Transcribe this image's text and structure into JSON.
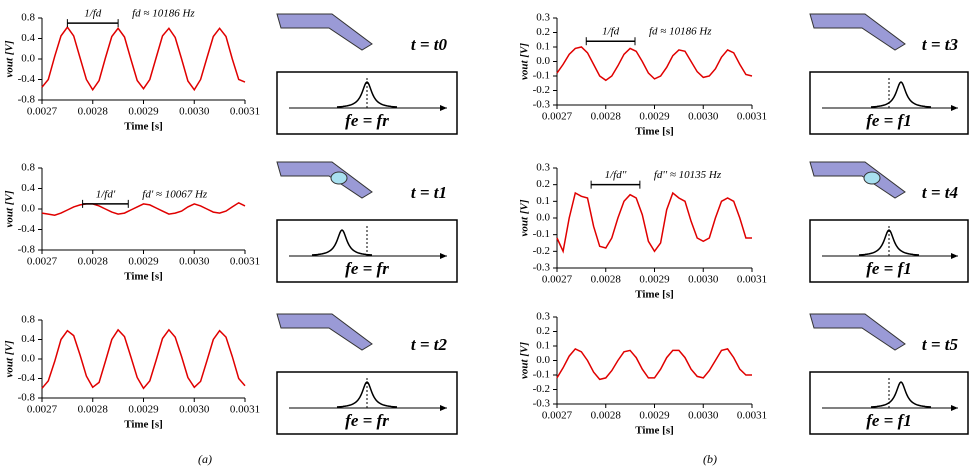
{
  "chart_data": [
    {
      "type": "line",
      "x_label": "Time [s]",
      "y_label": "vout [V]",
      "color": "#e00000",
      "period_label": "1/fd",
      "frequency_label": "fd ≈ 10186 Hz",
      "x": [
        0.0027,
        0.0027125,
        0.002725,
        0.0027375,
        0.00275,
        0.0027625,
        0.002775,
        0.0027875,
        0.0028,
        0.0028125,
        0.002825,
        0.0028375,
        0.00285,
        0.0028625,
        0.002875,
        0.0028875,
        0.0029,
        0.0029125,
        0.002925,
        0.0029375,
        0.00295,
        0.0029625,
        0.002975,
        0.0029875,
        0.003,
        0.0030125,
        0.003025,
        0.0030375,
        0.00305,
        0.0030625,
        0.003075,
        0.0030875,
        0.0031
      ],
      "values": [
        -0.55,
        -0.4,
        0.05,
        0.45,
        0.62,
        0.45,
        0.02,
        -0.4,
        -0.6,
        -0.42,
        0.02,
        0.44,
        0.6,
        0.43,
        0.0,
        -0.42,
        -0.58,
        -0.4,
        0.03,
        0.45,
        0.6,
        0.42,
        0.0,
        -0.43,
        -0.6,
        -0.4,
        0.02,
        0.44,
        0.6,
        0.44,
        0.0,
        -0.4,
        -0.45
      ],
      "xlim": [
        0.0027,
        0.0031
      ],
      "xticks": [
        0.0027,
        0.0028,
        0.0029,
        {
          "value": 0.003,
          "label": "0.0030"
        },
        0.0031
      ],
      "ylim": [
        -0.8,
        0.8
      ],
      "yticks": [
        -0.8,
        -0.4,
        {
          "value": 0,
          "label": "0.0"
        },
        0.4,
        0.8
      ]
    },
    {
      "type": "line",
      "x_label": "Time [s]",
      "y_label": "vout [V]",
      "color": "#e00000",
      "period_label": "1/fd'",
      "frequency_label": "fd' ≈ 10067 Hz",
      "x": [
        0.0027,
        0.0027125,
        0.002725,
        0.0027375,
        0.00275,
        0.0027625,
        0.002775,
        0.0027875,
        0.0028,
        0.0028125,
        0.002825,
        0.0028375,
        0.00285,
        0.0028625,
        0.002875,
        0.0028875,
        0.0029,
        0.0029125,
        0.002925,
        0.0029375,
        0.00295,
        0.0029625,
        0.002975,
        0.0029875,
        0.003,
        0.0030125,
        0.003025,
        0.0030375,
        0.00305,
        0.0030625,
        0.003075,
        0.0030875,
        0.0031
      ],
      "values": [
        -0.08,
        -0.1,
        -0.12,
        -0.08,
        -0.02,
        0.04,
        0.08,
        0.1,
        0.1,
        0.06,
        0.0,
        -0.06,
        -0.1,
        -0.08,
        -0.02,
        0.04,
        0.1,
        0.08,
        0.02,
        -0.04,
        -0.1,
        -0.08,
        -0.04,
        0.04,
        0.1,
        0.06,
        0.0,
        -0.06,
        -0.08,
        -0.04,
        0.04,
        0.12,
        0.06
      ],
      "xlim": [
        0.0027,
        0.0031
      ],
      "xticks": [
        0.0027,
        0.0028,
        0.0029,
        {
          "value": 0.003,
          "label": "0.0030"
        },
        0.0031
      ],
      "ylim": [
        -0.8,
        0.8
      ],
      "yticks": [
        -0.8,
        -0.4,
        {
          "value": 0,
          "label": "0.0"
        },
        0.4,
        0.8
      ]
    },
    {
      "type": "line",
      "x_label": "Time [s]",
      "y_label": "vout [V]",
      "color": "#e00000",
      "x": [
        0.0027,
        0.0027125,
        0.002725,
        0.0027375,
        0.00275,
        0.0027625,
        0.002775,
        0.0027875,
        0.0028,
        0.0028125,
        0.002825,
        0.0028375,
        0.00285,
        0.0028625,
        0.002875,
        0.0028875,
        0.0029,
        0.0029125,
        0.002925,
        0.0029375,
        0.00295,
        0.0029625,
        0.002975,
        0.0029875,
        0.003,
        0.0030125,
        0.003025,
        0.0030375,
        0.00305,
        0.0030625,
        0.003075,
        0.0030875,
        0.0031
      ],
      "values": [
        -0.6,
        -0.45,
        -0.05,
        0.4,
        0.58,
        0.48,
        0.08,
        -0.35,
        -0.58,
        -0.48,
        -0.05,
        0.4,
        0.6,
        0.46,
        0.05,
        -0.38,
        -0.6,
        -0.45,
        -0.02,
        0.42,
        0.6,
        0.45,
        0.05,
        -0.38,
        -0.58,
        -0.46,
        -0.04,
        0.4,
        0.58,
        0.45,
        0.05,
        -0.4,
        -0.55
      ],
      "xlim": [
        0.0027,
        0.0031
      ],
      "xticks": [
        0.0027,
        0.0028,
        0.0029,
        {
          "value": 0.003,
          "label": "0.0030"
        },
        0.0031
      ],
      "ylim": [
        -0.8,
        0.8
      ],
      "yticks": [
        -0.8,
        -0.4,
        {
          "value": 0,
          "label": "0.0"
        },
        0.4,
        0.8
      ]
    },
    {
      "type": "line",
      "x_label": "Time [s]",
      "y_label": "vout [V]",
      "color": "#e00000",
      "period_label": "1/fd",
      "frequency_label": "fd ≈ 10186 Hz",
      "x": [
        0.0027,
        0.0027125,
        0.002725,
        0.0027375,
        0.00275,
        0.0027625,
        0.002775,
        0.0027875,
        0.0028,
        0.0028125,
        0.002825,
        0.0028375,
        0.00285,
        0.0028625,
        0.002875,
        0.0028875,
        0.0029,
        0.0029125,
        0.002925,
        0.0029375,
        0.00295,
        0.0029625,
        0.002975,
        0.0029875,
        0.003,
        0.0030125,
        0.003025,
        0.0030375,
        0.00305,
        0.0030625,
        0.003075,
        0.0030875,
        0.0031
      ],
      "values": [
        -0.08,
        -0.02,
        0.05,
        0.09,
        0.1,
        0.06,
        -0.02,
        -0.1,
        -0.13,
        -0.1,
        -0.03,
        0.05,
        0.09,
        0.07,
        0.0,
        -0.08,
        -0.12,
        -0.1,
        -0.04,
        0.04,
        0.08,
        0.07,
        0.0,
        -0.07,
        -0.11,
        -0.1,
        -0.05,
        0.03,
        0.08,
        0.06,
        -0.02,
        -0.09,
        -0.1
      ],
      "xlim": [
        0.0027,
        0.0031
      ],
      "xticks": [
        0.0027,
        0.0028,
        0.0029,
        {
          "value": 0.003,
          "label": "0.0030"
        },
        0.0031
      ],
      "ylim": [
        -0.3,
        0.3
      ],
      "yticks": [
        -0.3,
        -0.2,
        -0.1,
        {
          "value": 0,
          "label": "0.0"
        },
        0.1,
        0.2,
        0.3
      ]
    },
    {
      "type": "line",
      "x_label": "Time [s]",
      "y_label": "vout [V]",
      "color": "#e00000",
      "period_label": "1/fd''",
      "frequency_label": "fd'' ≈ 10135 Hz",
      "x": [
        0.0027,
        0.0027125,
        0.002725,
        0.0027375,
        0.00275,
        0.0027625,
        0.002775,
        0.0027875,
        0.0028,
        0.0028125,
        0.002825,
        0.0028375,
        0.00285,
        0.0028625,
        0.002875,
        0.0028875,
        0.0029,
        0.0029125,
        0.002925,
        0.0029375,
        0.00295,
        0.0029625,
        0.002975,
        0.0029875,
        0.003,
        0.0030125,
        0.003025,
        0.0030375,
        0.00305,
        0.0030625,
        0.003075,
        0.0030875,
        0.0031
      ],
      "values": [
        -0.12,
        -0.2,
        0.0,
        0.15,
        0.13,
        0.12,
        -0.05,
        -0.17,
        -0.18,
        -0.12,
        0.0,
        0.1,
        0.14,
        0.12,
        0.02,
        -0.14,
        -0.2,
        -0.15,
        0.05,
        0.15,
        0.12,
        0.1,
        -0.02,
        -0.12,
        -0.14,
        -0.12,
        0.0,
        0.1,
        0.12,
        0.1,
        0.0,
        -0.12,
        -0.12
      ],
      "xlim": [
        0.0027,
        0.0031
      ],
      "xticks": [
        0.0027,
        0.0028,
        0.0029,
        {
          "value": 0.003,
          "label": "0.0030"
        },
        0.0031
      ],
      "ylim": [
        -0.3,
        0.3
      ],
      "yticks": [
        -0.3,
        -0.2,
        -0.1,
        {
          "value": 0,
          "label": "0.0"
        },
        0.1,
        0.2,
        0.3
      ]
    },
    {
      "type": "line",
      "x_label": "Time [s]",
      "y_label": "vout [V]",
      "color": "#e00000",
      "x": [
        0.0027,
        0.0027125,
        0.002725,
        0.0027375,
        0.00275,
        0.0027625,
        0.002775,
        0.0027875,
        0.0028,
        0.0028125,
        0.002825,
        0.0028375,
        0.00285,
        0.0028625,
        0.002875,
        0.0028875,
        0.0029,
        0.0029125,
        0.002925,
        0.0029375,
        0.00295,
        0.0029625,
        0.002975,
        0.0029875,
        0.003,
        0.0030125,
        0.003025,
        0.0030375,
        0.00305,
        0.0030625,
        0.003075,
        0.0030875,
        0.0031
      ],
      "values": [
        -0.12,
        -0.05,
        0.03,
        0.08,
        0.06,
        0.0,
        -0.08,
        -0.13,
        -0.12,
        -0.07,
        0.0,
        0.06,
        0.07,
        0.02,
        -0.06,
        -0.12,
        -0.12,
        -0.06,
        0.02,
        0.07,
        0.07,
        0.02,
        -0.06,
        -0.11,
        -0.12,
        -0.07,
        0.0,
        0.07,
        0.08,
        0.02,
        -0.06,
        -0.1,
        -0.1
      ],
      "xlim": [
        0.0027,
        0.0031
      ],
      "xticks": [
        0.0027,
        0.0028,
        0.0029,
        {
          "value": 0.003,
          "label": "0.0030"
        },
        0.0031
      ],
      "ylim": [
        -0.3,
        0.3
      ],
      "yticks": [
        -0.3,
        -0.2,
        -0.1,
        {
          "value": 0,
          "label": "0.0"
        },
        0.1,
        0.2,
        0.3
      ]
    }
  ],
  "diagrams": [
    {
      "time": "t = t0",
      "condition": "fe = fr"
    },
    {
      "time": "t = t1",
      "condition": "fe = fr"
    },
    {
      "time": "t = t2",
      "condition": "fe = fr"
    },
    {
      "time": "t = t3",
      "condition": "fe = f1"
    },
    {
      "time": "t = t4",
      "condition": "fe = f1"
    },
    {
      "time": "t = t5",
      "condition": "fe = f1"
    }
  ],
  "captions": [
    "(a)",
    "(b)"
  ]
}
